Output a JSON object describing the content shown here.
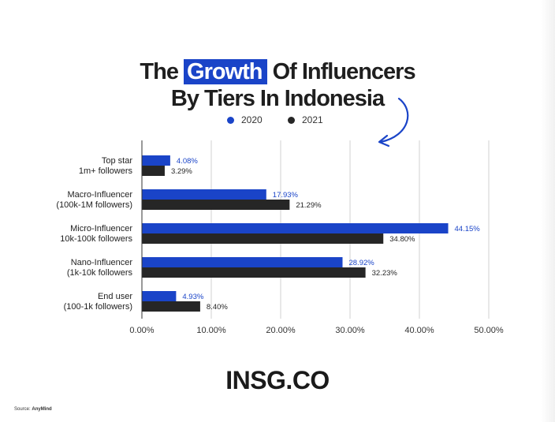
{
  "title": {
    "line1_before": "The ",
    "line1_highlight": "Growth",
    "line1_after": " Of Influencers",
    "line2": "By Tiers In Indonesia"
  },
  "footer": {
    "logo": "INSG.CO",
    "source_label": "Source:",
    "source_name": "AnyMind"
  },
  "colors": {
    "series_2020": "#1a44c8",
    "series_2021": "#262626",
    "grid": "#d0d0d0",
    "label_2020": "#1a44c8",
    "label_2021": "#262626"
  },
  "chart_data": {
    "type": "bar",
    "orientation": "horizontal",
    "categories": [
      [
        "Top star",
        "1m+ followers"
      ],
      [
        "Macro-Influencer",
        "(100k-1M followers)"
      ],
      [
        "Micro-Influencer",
        "10k-100k followers"
      ],
      [
        "Nano-Influencer",
        "(1k-10k followers"
      ],
      [
        "End user",
        "(100-1k followers)"
      ]
    ],
    "series": [
      {
        "name": "2020",
        "values": [
          4.08,
          17.93,
          44.15,
          28.92,
          4.93
        ],
        "labels": [
          "4.08%",
          "17.93%",
          "44.15%",
          "28.92%",
          "4.93%"
        ]
      },
      {
        "name": "2021",
        "values": [
          3.29,
          21.29,
          34.8,
          32.23,
          8.4
        ],
        "labels": [
          "3.29%",
          "21.29%",
          "34.80%",
          "32.23%",
          "8.40%"
        ]
      }
    ],
    "xticks": [
      "0.00%",
      "10.00%",
      "20.00%",
      "30.00%",
      "40.00%",
      "50.00%"
    ],
    "xlim": [
      0,
      50
    ],
    "grid": true,
    "legend_position": "top-center"
  }
}
